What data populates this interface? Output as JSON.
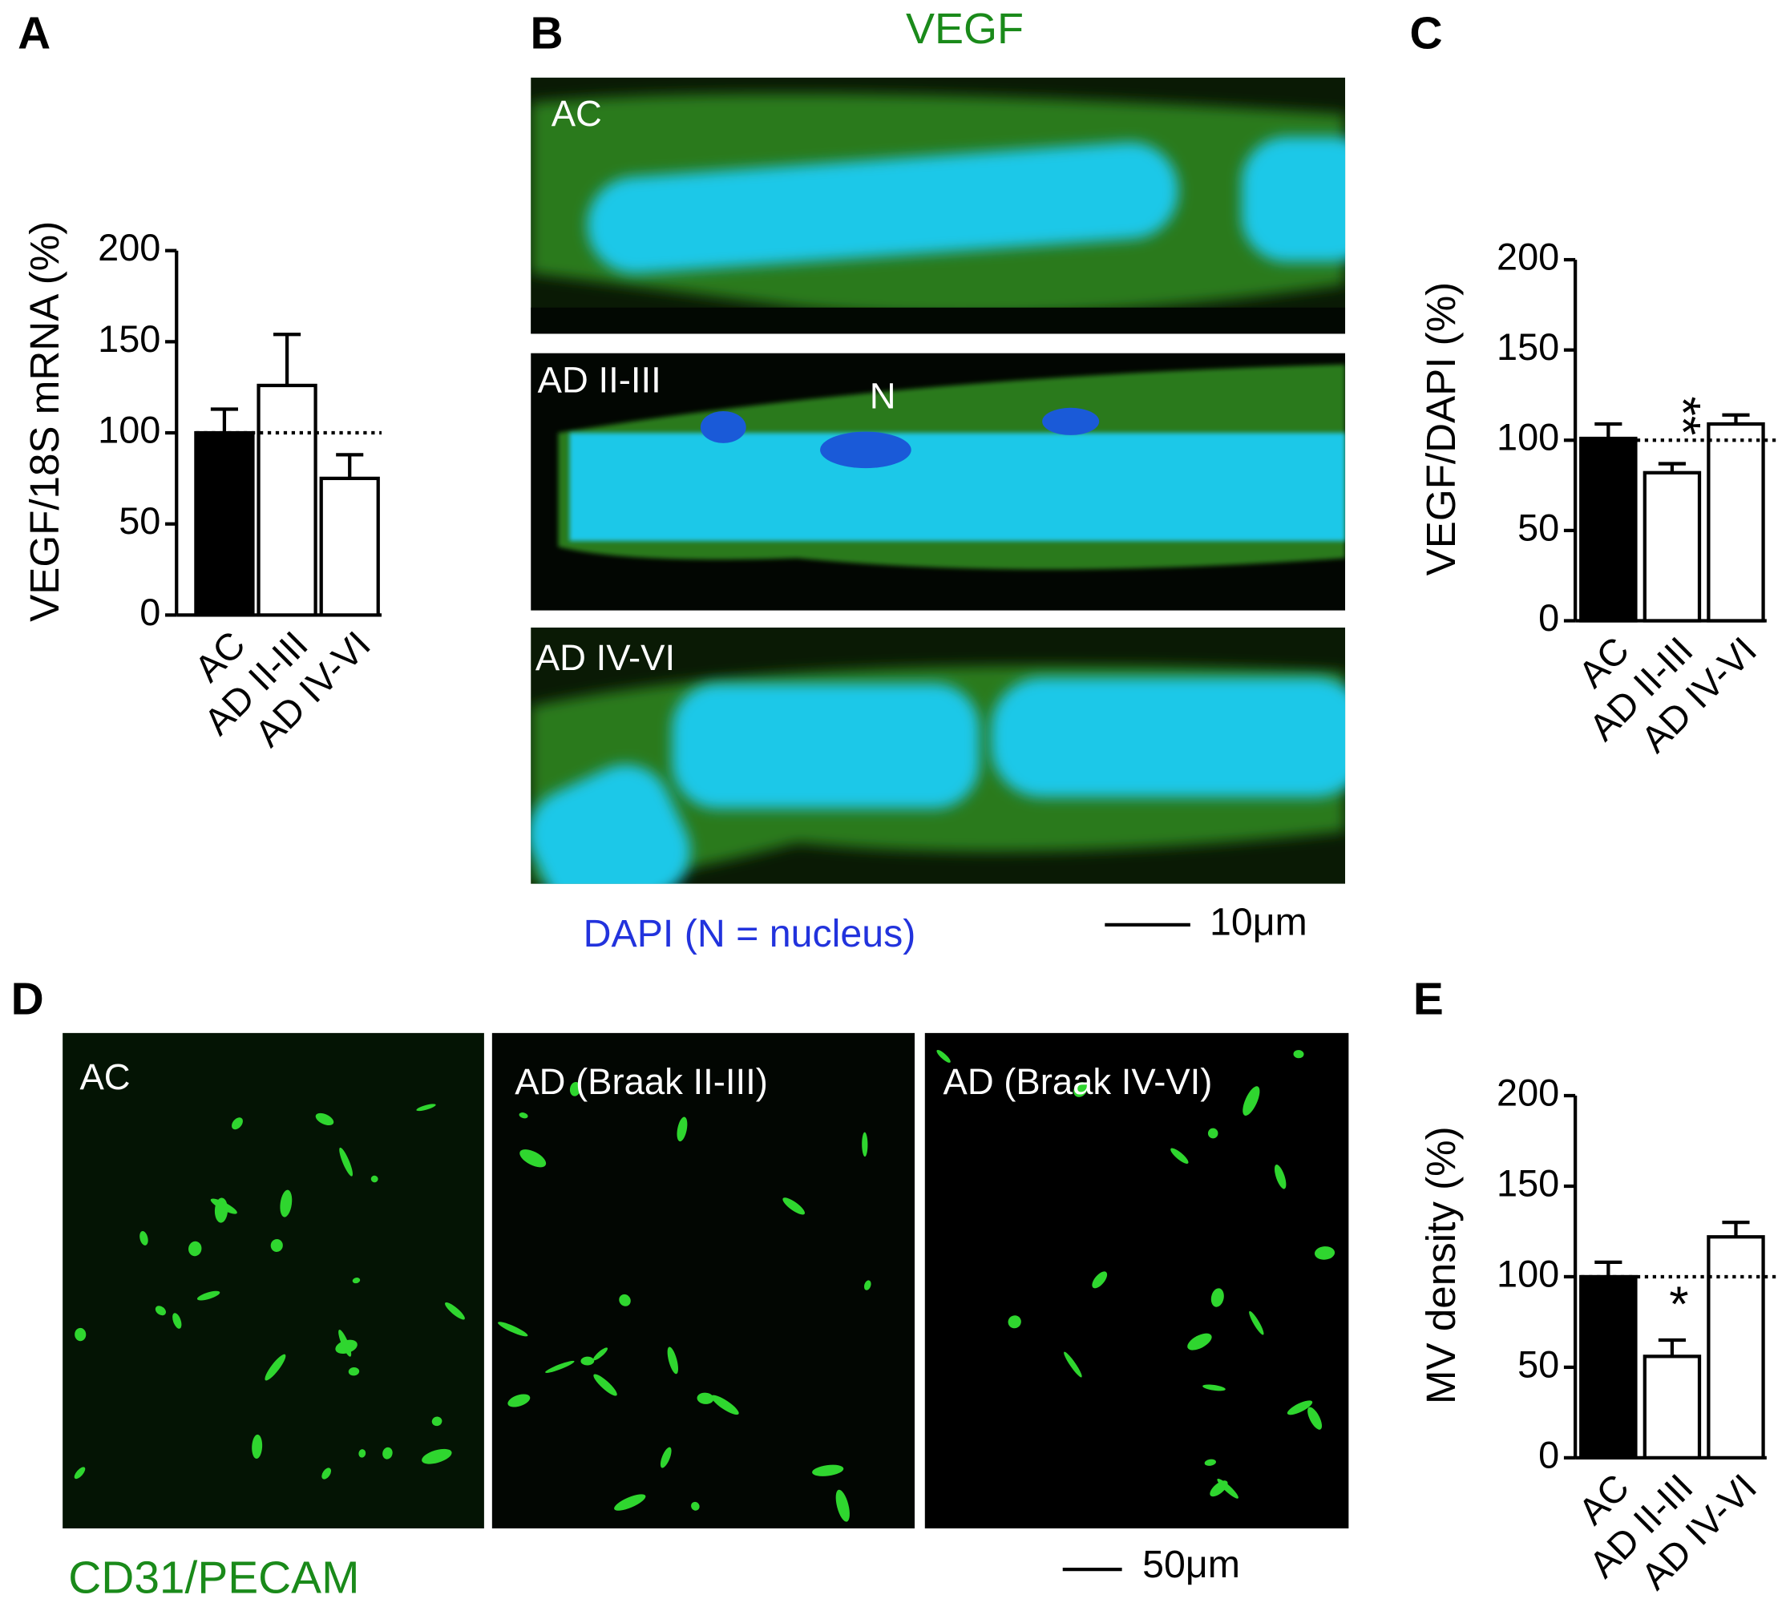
{
  "panel_labels": [
    "A",
    "B",
    "C",
    "D",
    "E"
  ],
  "chart_data": [
    {
      "type": "bar",
      "ylabel": "VEGF/18S mRNA (%)",
      "categories": [
        "AC",
        "AD II-III",
        "AD IV-VI"
      ],
      "values": [
        100,
        126,
        75
      ],
      "errors": [
        13,
        28,
        13
      ],
      "colors": [
        "#000000",
        "#ffffff",
        "#ffffff"
      ],
      "ylim": [
        0,
        200
      ],
      "yticks": [
        0,
        50,
        100,
        150,
        200
      ],
      "reference_line": 100,
      "annotations": []
    },
    {
      "type": "bar",
      "ylabel": "VEGF/DAPI (%)",
      "categories": [
        "AC",
        "AD II-III",
        "AD IV-VI"
      ],
      "values": [
        101,
        82,
        109
      ],
      "errors": [
        8,
        5,
        5
      ],
      "colors": [
        "#000000",
        "#ffffff",
        "#ffffff"
      ],
      "ylim": [
        0,
        200
      ],
      "yticks": [
        0,
        50,
        100,
        150,
        200
      ],
      "reference_line": 100,
      "annotations": [
        {
          "category": "AD II-III",
          "text": "**"
        }
      ]
    },
    {
      "type": "bar",
      "ylabel": "MV density (%)",
      "categories": [
        "AC",
        "AD II-III",
        "AD IV-VI"
      ],
      "values": [
        100,
        56,
        122
      ],
      "errors": [
        8,
        9,
        8
      ],
      "colors": [
        "#000000",
        "#ffffff",
        "#ffffff"
      ],
      "ylim": [
        0,
        200
      ],
      "yticks": [
        0,
        50,
        100,
        150,
        200
      ],
      "reference_line": 100,
      "annotations": [
        {
          "category": "AD II-III",
          "text": "*"
        }
      ]
    }
  ],
  "vegf_images": {
    "title": "VEGF",
    "rows": [
      "AC",
      "AD II-III",
      "AD IV-VI"
    ],
    "nucleus_label": "N",
    "dapi_label": "DAPI (N = nucleus)",
    "scale_bar": "10μm"
  },
  "cd31_images": {
    "panels": [
      "AC",
      "AD (Braak II-III)",
      "AD (Braak IV-VI)"
    ],
    "label": "CD31/PECAM",
    "scale_bar": "50μm"
  }
}
